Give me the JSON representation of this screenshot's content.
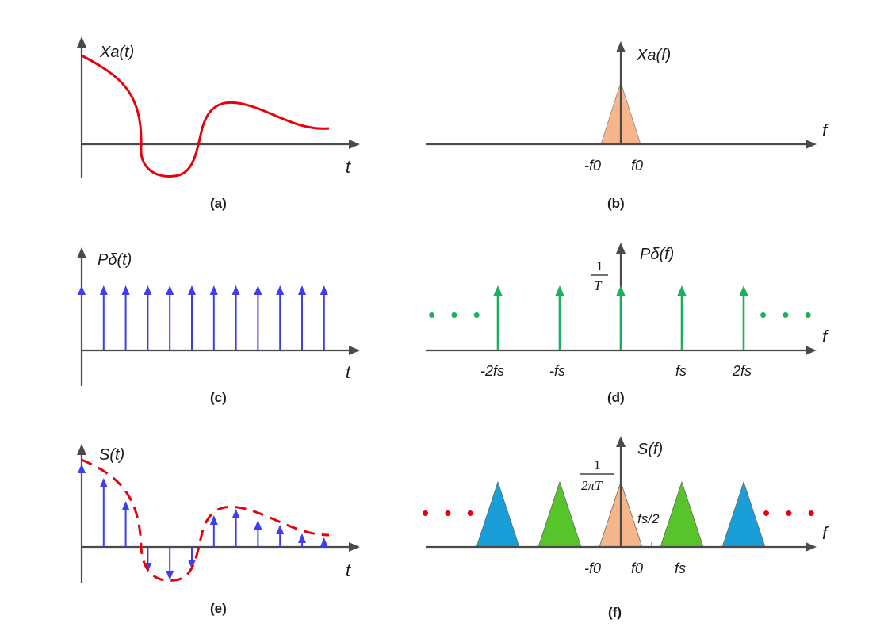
{
  "colors": {
    "axis": "#4a4a4a",
    "signal": "#e8000b",
    "sample_blue": "#3f3df0",
    "comb_green": "#19b25a",
    "base_band": "#f7b58a",
    "image_green": "#56c42a",
    "image_blue": "#1a9ed8"
  },
  "panels": {
    "a": {
      "caption": "(a)",
      "ylabel": "Xa(t)",
      "xlabel": "t"
    },
    "b": {
      "caption": "(b)",
      "ylabel": "Xa(f)",
      "xlabel": "f",
      "tick_left": "-f0",
      "tick_right": "f0"
    },
    "c": {
      "caption": "(c)",
      "ylabel": "Pδ(t)",
      "xlabel": "t",
      "impulse_count": 12
    },
    "d": {
      "caption": "(d)",
      "ylabel": "Pδ(f)",
      "xlabel": "f",
      "amp_num": "1",
      "amp_den": "T",
      "ticks": [
        "-2fs",
        "-fs",
        "fs",
        "2fs"
      ],
      "ellipsis": "• • •"
    },
    "e": {
      "caption": "(e)",
      "ylabel": "S(t)",
      "xlabel": "t",
      "sample_count": 12
    },
    "f": {
      "caption": "(f)",
      "ylabel": "S(f)",
      "xlabel": "f",
      "amp_num": "1",
      "amp_den": "2πT",
      "half_rate": "fs/2",
      "ticks": [
        "-f0",
        "f0",
        "fs"
      ],
      "ellipsis": "• • •"
    }
  }
}
